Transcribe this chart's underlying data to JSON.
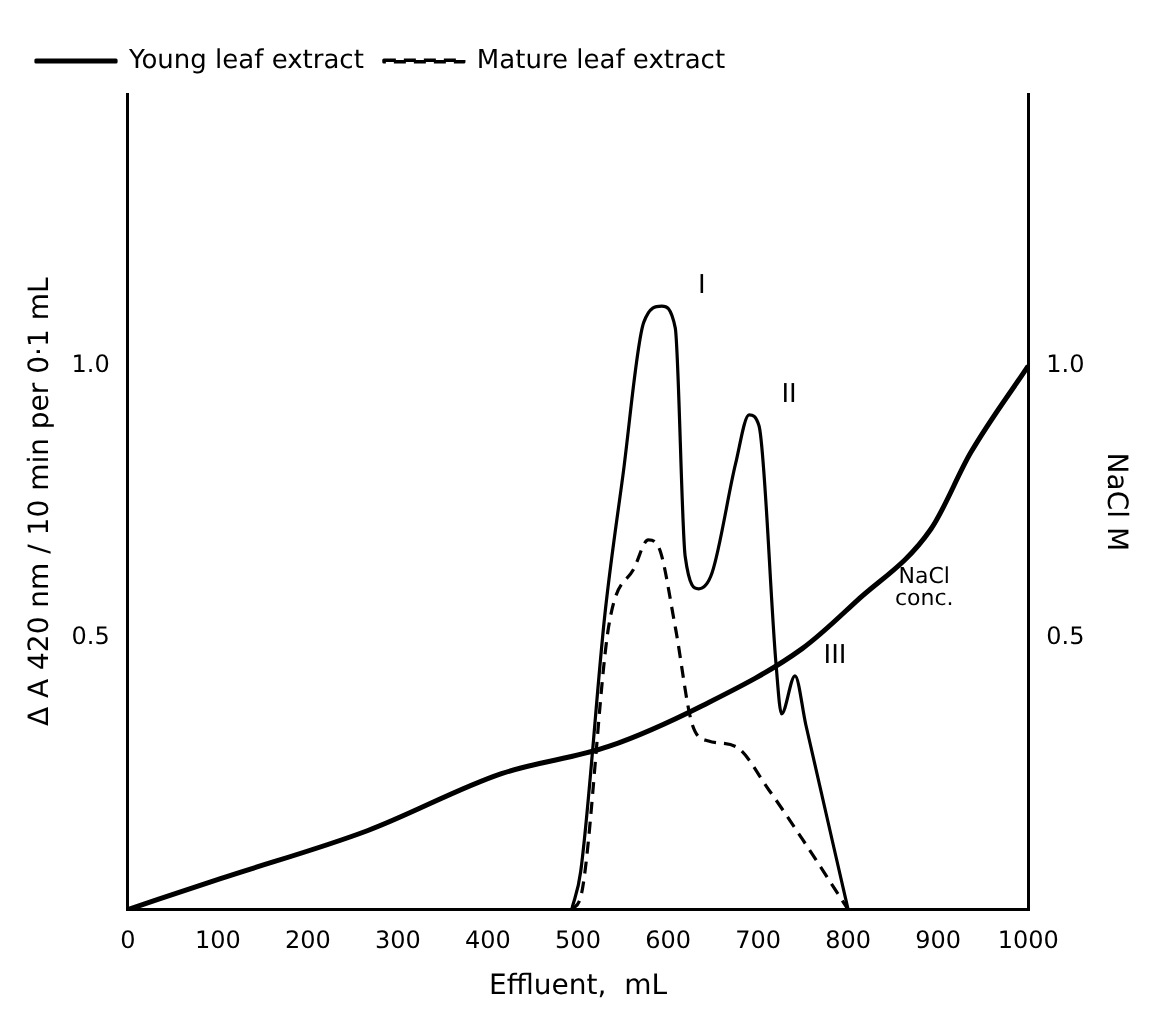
{
  "chart_data": {
    "type": "line",
    "xlabel": "Effluent,  mL",
    "ylabel": "Δ A 420 nm / 10 min per 0·1 mL",
    "y2label": "NaCl M",
    "xlim": [
      0,
      1000
    ],
    "xticks": [
      0,
      100,
      200,
      300,
      400,
      500,
      600,
      700,
      800,
      900,
      1000
    ],
    "ylim": [
      0,
      1.5
    ],
    "yticks": [
      0.5,
      {
        "value": 1,
        "label": "1.0"
      }
    ],
    "y2lim": [
      0,
      1.5
    ],
    "y2ticks": [
      0.5,
      {
        "value": 1,
        "label": "1.0"
      }
    ],
    "grid": false,
    "legend": "top left",
    "marker": "none",
    "series": [
      {
        "name": "Young leaf extract",
        "color": "#000000",
        "line_style": "solid",
        "x": [
          493,
          503,
          530,
          550,
          573,
          593,
          608,
          619,
          634,
          649,
          675,
          690,
          701,
          720,
          726,
          741,
          753,
          800
        ],
        "values": [
          0,
          0.07,
          0.545,
          0.8,
          1.08,
          1.11,
          1.07,
          0.65,
          0.59,
          0.62,
          0.82,
          0.91,
          0.89,
          0.45,
          0.36,
          0.43,
          0.34,
          0
        ]
      },
      {
        "name": "Mature leaf extract",
        "color": "#000000",
        "line_style": "dashed",
        "x": [
          493,
          504,
          534,
          563,
          578,
          590,
          608,
          627,
          645,
          675,
          712,
          749,
          800
        ],
        "values": [
          0,
          0.03,
          0.52,
          0.63,
          0.68,
          0.665,
          0.52,
          0.34,
          0.31,
          0.3,
          0.22,
          0.13,
          0
        ]
      },
      {
        "color": "#000000",
        "line_style": "solid",
        "axis": "y2",
        "x": [
          0,
          103,
          266,
          415,
          534,
          638,
          749,
          809,
          892,
          936,
          1000
        ],
        "values": [
          0,
          0.057,
          0.145,
          0.25,
          0.3,
          0.375,
          0.48,
          0.567,
          0.7,
          0.84,
          1.0
        ]
      }
    ],
    "annotations": [
      {
        "text": "I",
        "x": 593,
        "y": 1.11
      },
      {
        "text": "II",
        "x": 690,
        "y": 0.91
      },
      {
        "text": "III",
        "x": 741,
        "y": 0.43
      },
      {
        "text": "NaCl conc.",
        "x": 809,
        "y": 0.567
      }
    ]
  }
}
